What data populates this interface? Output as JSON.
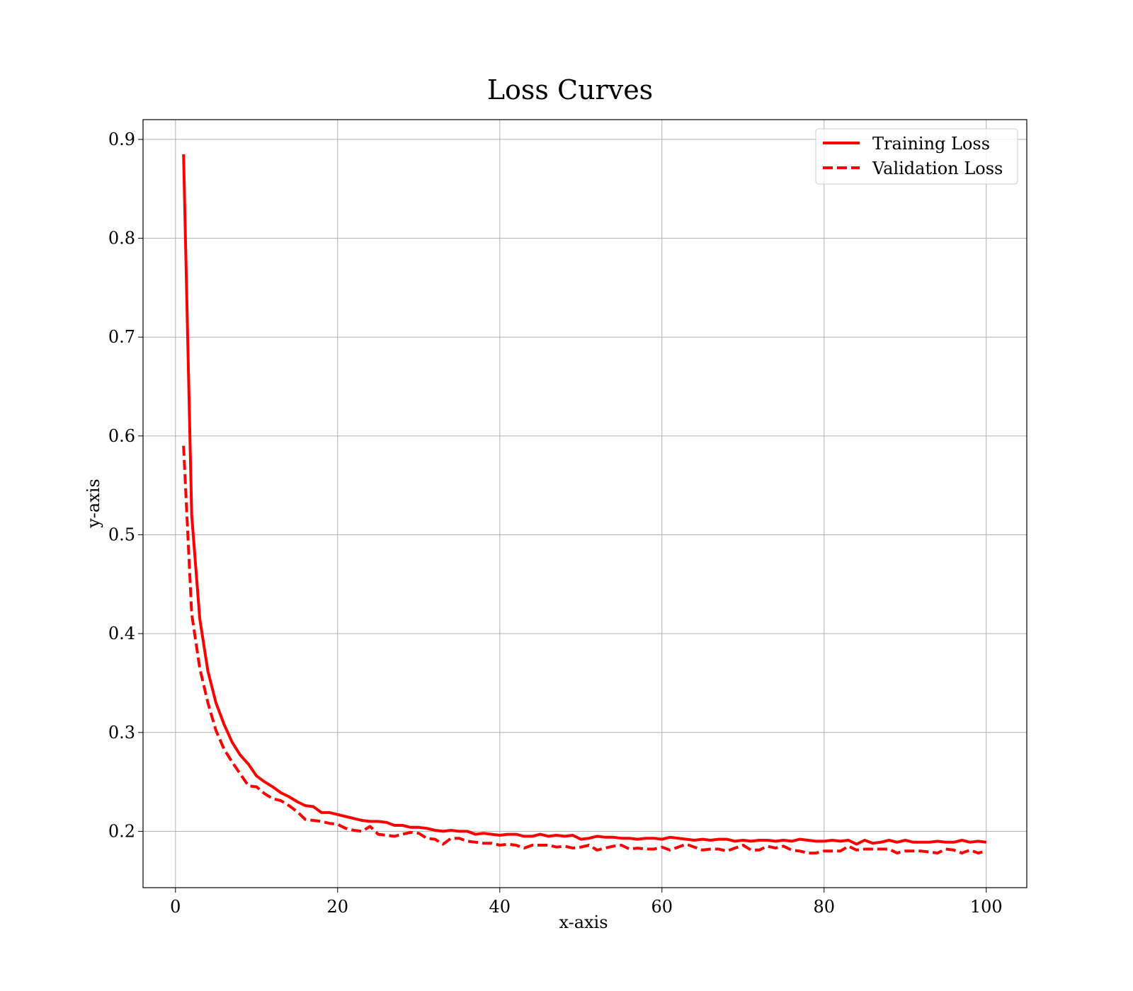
{
  "chart_data": {
    "type": "line",
    "title": "Loss Curves",
    "xlabel": "x-axis",
    "ylabel": "y-axis",
    "xlim": [
      -4,
      105
    ],
    "ylim": [
      0.143,
      0.92
    ],
    "xticks": [
      0,
      20,
      40,
      60,
      80,
      100
    ],
    "yticks": [
      0.2,
      0.3,
      0.4,
      0.5,
      0.6,
      0.7,
      0.8,
      0.9
    ],
    "xtick_labels": [
      "0",
      "20",
      "40",
      "60",
      "80",
      "100"
    ],
    "ytick_labels": [
      "0.2",
      "0.3",
      "0.4",
      "0.5",
      "0.6",
      "0.7",
      "0.8",
      "0.9"
    ],
    "grid": true,
    "legend_position": "top-right",
    "series": [
      {
        "name": "Training Loss",
        "color": "#ff0000",
        "style": "solid",
        "x": [
          1,
          2,
          3,
          4,
          5,
          6,
          7,
          8,
          9,
          10,
          11,
          12,
          13,
          14,
          15,
          16,
          17,
          18,
          19,
          20,
          21,
          22,
          23,
          24,
          25,
          26,
          27,
          28,
          29,
          30,
          31,
          32,
          33,
          34,
          35,
          36,
          37,
          38,
          39,
          40,
          41,
          42,
          43,
          44,
          45,
          46,
          47,
          48,
          49,
          50,
          51,
          52,
          53,
          54,
          55,
          56,
          57,
          58,
          59,
          60,
          61,
          62,
          63,
          64,
          65,
          66,
          67,
          68,
          69,
          70,
          71,
          72,
          73,
          74,
          75,
          76,
          77,
          78,
          79,
          80,
          81,
          82,
          83,
          84,
          85,
          86,
          87,
          88,
          89,
          90,
          91,
          92,
          93,
          94,
          95,
          96,
          97,
          98,
          99,
          100
        ],
        "values": [
          0.885,
          0.52,
          0.415,
          0.362,
          0.33,
          0.308,
          0.29,
          0.277,
          0.268,
          0.256,
          0.25,
          0.245,
          0.239,
          0.235,
          0.23,
          0.226,
          0.225,
          0.219,
          0.219,
          0.217,
          0.215,
          0.213,
          0.211,
          0.21,
          0.21,
          0.209,
          0.206,
          0.206,
          0.204,
          0.204,
          0.203,
          0.201,
          0.2,
          0.201,
          0.2,
          0.2,
          0.197,
          0.198,
          0.197,
          0.196,
          0.197,
          0.197,
          0.195,
          0.195,
          0.197,
          0.195,
          0.196,
          0.195,
          0.196,
          0.192,
          0.193,
          0.195,
          0.194,
          0.194,
          0.193,
          0.193,
          0.192,
          0.193,
          0.193,
          0.192,
          0.194,
          0.193,
          0.192,
          0.191,
          0.192,
          0.191,
          0.192,
          0.192,
          0.19,
          0.191,
          0.19,
          0.191,
          0.191,
          0.19,
          0.191,
          0.19,
          0.192,
          0.191,
          0.19,
          0.19,
          0.191,
          0.19,
          0.191,
          0.187,
          0.191,
          0.188,
          0.189,
          0.191,
          0.189,
          0.191,
          0.189,
          0.189,
          0.189,
          0.19,
          0.189,
          0.189,
          0.191,
          0.189,
          0.19,
          0.189
        ]
      },
      {
        "name": "Validation Loss",
        "color": "#ff0000",
        "style": "dashed",
        "x": [
          1,
          2,
          3,
          4,
          5,
          6,
          7,
          8,
          9,
          10,
          11,
          12,
          13,
          14,
          15,
          16,
          17,
          18,
          19,
          20,
          21,
          22,
          23,
          24,
          25,
          26,
          27,
          28,
          29,
          30,
          31,
          32,
          33,
          34,
          35,
          36,
          37,
          38,
          39,
          40,
          41,
          42,
          43,
          44,
          45,
          46,
          47,
          48,
          49,
          50,
          51,
          52,
          53,
          54,
          55,
          56,
          57,
          58,
          59,
          60,
          61,
          62,
          63,
          64,
          65,
          66,
          67,
          68,
          69,
          70,
          71,
          72,
          73,
          74,
          75,
          76,
          77,
          78,
          79,
          80,
          81,
          82,
          83,
          84,
          85,
          86,
          87,
          88,
          89,
          90,
          91,
          92,
          93,
          94,
          95,
          96,
          97,
          98,
          99,
          100
        ],
        "values": [
          0.59,
          0.42,
          0.365,
          0.33,
          0.302,
          0.283,
          0.27,
          0.258,
          0.246,
          0.245,
          0.238,
          0.233,
          0.231,
          0.226,
          0.22,
          0.212,
          0.211,
          0.21,
          0.208,
          0.207,
          0.203,
          0.201,
          0.2,
          0.205,
          0.197,
          0.196,
          0.195,
          0.197,
          0.199,
          0.198,
          0.193,
          0.192,
          0.187,
          0.193,
          0.193,
          0.19,
          0.189,
          0.188,
          0.188,
          0.186,
          0.187,
          0.186,
          0.183,
          0.186,
          0.186,
          0.186,
          0.184,
          0.185,
          0.183,
          0.184,
          0.186,
          0.181,
          0.183,
          0.185,
          0.186,
          0.182,
          0.183,
          0.182,
          0.182,
          0.184,
          0.181,
          0.184,
          0.187,
          0.184,
          0.181,
          0.182,
          0.182,
          0.18,
          0.183,
          0.186,
          0.181,
          0.181,
          0.185,
          0.183,
          0.185,
          0.181,
          0.18,
          0.178,
          0.178,
          0.18,
          0.18,
          0.18,
          0.185,
          0.181,
          0.182,
          0.182,
          0.182,
          0.182,
          0.178,
          0.18,
          0.18,
          0.18,
          0.179,
          0.178,
          0.182,
          0.181,
          0.178,
          0.181,
          0.178,
          0.18
        ]
      }
    ]
  }
}
